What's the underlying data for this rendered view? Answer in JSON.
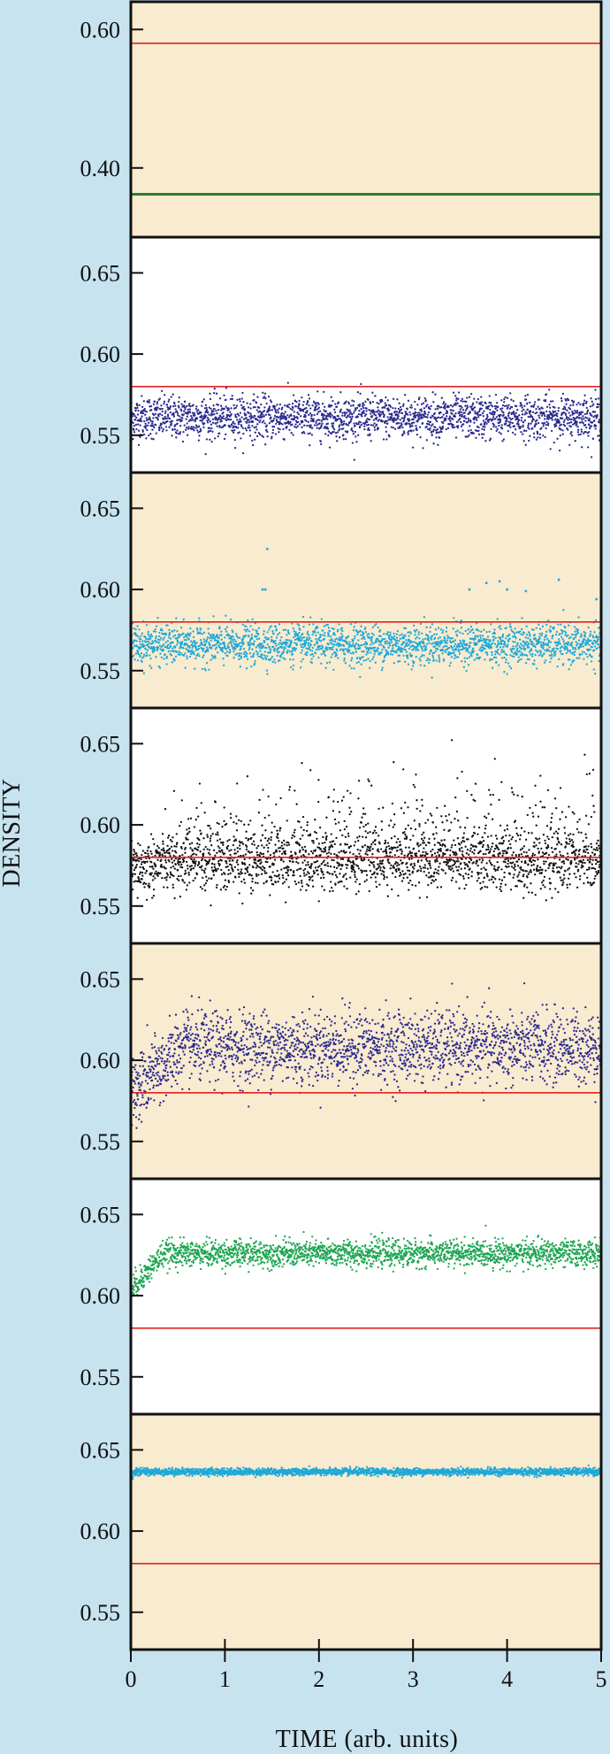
{
  "chart_data": [
    {
      "type": "scatter",
      "panel_bg": "#f8ebcf",
      "ylim": [
        0.3,
        0.64
      ],
      "yticks": [
        {
          "v": 0.4,
          "label": "0.40"
        },
        {
          "v": 0.6,
          "label": "0.60"
        }
      ],
      "reference_line": {
        "y": 0.58,
        "color": "#e02424"
      },
      "series": [
        {
          "color": "#2e7d32",
          "mean": 0.362,
          "noise": 0.0,
          "settle": 0,
          "points": 0,
          "line": true
        }
      ]
    },
    {
      "type": "scatter",
      "panel_bg": "#ffffff",
      "ylim": [
        0.527,
        0.672
      ],
      "yticks": [
        {
          "v": 0.55,
          "label": "0.55"
        },
        {
          "v": 0.6,
          "label": "0.60"
        },
        {
          "v": 0.65,
          "label": "0.65"
        }
      ],
      "reference_line": {
        "y": 0.58,
        "color": "#e02424"
      },
      "series": [
        {
          "color": "#2b2a8f",
          "mean": 0.561,
          "noise": 0.0065,
          "settle": 0,
          "points": 2200
        }
      ]
    },
    {
      "type": "scatter",
      "panel_bg": "#f8ebcf",
      "ylim": [
        0.527,
        0.672
      ],
      "yticks": [
        {
          "v": 0.55,
          "label": "0.55"
        },
        {
          "v": 0.6,
          "label": "0.60"
        },
        {
          "v": 0.65,
          "label": "0.65"
        }
      ],
      "reference_line": {
        "y": 0.58,
        "color": "#e02424"
      },
      "series": [
        {
          "color": "#1fa8d8",
          "mean": 0.566,
          "noise": 0.006,
          "settle": 0,
          "points": 2200,
          "outliers": [
            [
              1.45,
              0.625
            ],
            [
              1.4,
              0.6
            ],
            [
              1.43,
              0.6
            ],
            [
              3.6,
              0.6
            ],
            [
              3.78,
              0.604
            ],
            [
              3.92,
              0.605
            ],
            [
              4.0,
              0.6
            ],
            [
              4.2,
              0.599
            ],
            [
              4.55,
              0.606
            ],
            [
              4.95,
              0.594
            ]
          ]
        }
      ]
    },
    {
      "type": "scatter",
      "panel_bg": "#ffffff",
      "ylim": [
        0.527,
        0.672
      ],
      "yticks": [
        {
          "v": 0.55,
          "label": "0.55"
        },
        {
          "v": 0.6,
          "label": "0.60"
        },
        {
          "v": 0.65,
          "label": "0.65"
        }
      ],
      "reference_line": {
        "y": 0.58,
        "color": "#e02424"
      },
      "series": [
        {
          "color": "#111111",
          "mean": 0.578,
          "noise": 0.009,
          "settle": 0.4,
          "start": 0.572,
          "points": 2200,
          "spikes": 0.17
        }
      ]
    },
    {
      "type": "scatter",
      "panel_bg": "#f8ebcf",
      "ylim": [
        0.527,
        0.672
      ],
      "yticks": [
        {
          "v": 0.55,
          "label": "0.55"
        },
        {
          "v": 0.6,
          "label": "0.60"
        },
        {
          "v": 0.65,
          "label": "0.65"
        }
      ],
      "reference_line": {
        "y": 0.58,
        "color": "#e02424"
      },
      "series": [
        {
          "color": "#2b2a8f",
          "mean": 0.608,
          "noise": 0.011,
          "settle": 0.55,
          "start": 0.579,
          "points": 2200
        }
      ]
    },
    {
      "type": "scatter",
      "panel_bg": "#ffffff",
      "ylim": [
        0.527,
        0.672
      ],
      "yticks": [
        {
          "v": 0.55,
          "label": "0.55"
        },
        {
          "v": 0.6,
          "label": "0.60"
        },
        {
          "v": 0.65,
          "label": "0.65"
        }
      ],
      "reference_line": {
        "y": 0.58,
        "color": "#e02424"
      },
      "series": [
        {
          "color": "#1ea652",
          "mean": 0.626,
          "noise": 0.004,
          "settle": 0.35,
          "start": 0.604,
          "points": 2200
        }
      ]
    },
    {
      "type": "scatter",
      "panel_bg": "#f8ebcf",
      "ylim": [
        0.527,
        0.672
      ],
      "yticks": [
        {
          "v": 0.55,
          "label": "0.55"
        },
        {
          "v": 0.6,
          "label": "0.60"
        },
        {
          "v": 0.65,
          "label": "0.65"
        }
      ],
      "reference_line": {
        "y": 0.58,
        "color": "#e02424"
      },
      "series": [
        {
          "color": "#1fa8d8",
          "mean": 0.6365,
          "noise": 0.0011,
          "settle": 0.05,
          "start": 0.633,
          "points": 2400
        }
      ]
    }
  ],
  "xaxis": {
    "label": "TIME (arb. units)",
    "xlim": [
      0,
      5
    ],
    "ticks": [
      {
        "v": 0,
        "label": "0"
      },
      {
        "v": 1,
        "label": "1"
      },
      {
        "v": 2,
        "label": "2"
      },
      {
        "v": 3,
        "label": "3"
      },
      {
        "v": 4,
        "label": "4"
      },
      {
        "v": 5,
        "label": "5"
      }
    ]
  },
  "yaxis": {
    "label": "DENSITY"
  }
}
